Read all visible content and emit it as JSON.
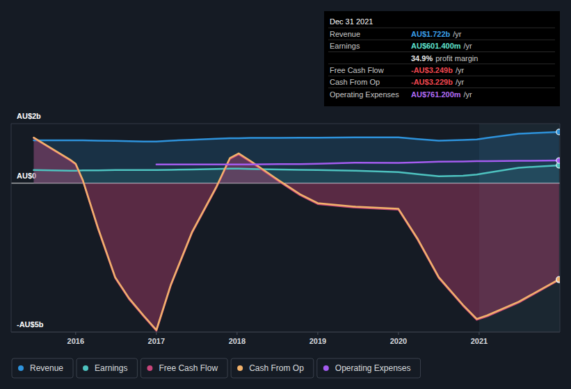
{
  "chart_data": {
    "type": "area",
    "x": [
      2015.48,
      2015.93,
      2016.0,
      2016.09,
      2016.28,
      2016.49,
      2016.66,
      2016.84,
      2017.0,
      2017.18,
      2017.44,
      2017.74,
      2017.91,
      2018.02,
      2018.17,
      2018.52,
      2018.78,
      2019.0,
      2019.47,
      2020.0,
      2020.24,
      2020.5,
      2020.8,
      2020.97,
      2021.1,
      2021.49,
      2021.99
    ],
    "xlim": [
      2015.2,
      2022.0
    ],
    "xticks": [
      2016,
      2017,
      2018,
      2019,
      2020,
      2021
    ],
    "ylim": [
      -5,
      2
    ],
    "yticks": [
      {
        "value": 2,
        "label": "AU$2b"
      },
      {
        "value": 0,
        "label": "AU$0"
      },
      {
        "value": -5,
        "label": "-AU$5b"
      }
    ],
    "grid": true,
    "legend": "bottom",
    "series": [
      {
        "name": "Revenue",
        "type": "area",
        "color": "#2e93dc",
        "values": [
          1.44,
          1.44,
          1.44,
          1.44,
          1.43,
          1.42,
          1.41,
          1.4,
          1.4,
          1.43,
          1.46,
          1.49,
          1.51,
          1.51,
          1.52,
          1.52,
          1.53,
          1.53,
          1.54,
          1.54,
          1.48,
          1.43,
          1.45,
          1.47,
          1.52,
          1.66,
          1.722
        ]
      },
      {
        "name": "Earnings",
        "type": "area",
        "color": "#4ec3c0",
        "values": [
          0.44,
          0.42,
          0.42,
          0.43,
          0.43,
          0.44,
          0.44,
          0.44,
          0.44,
          0.45,
          0.46,
          0.48,
          0.49,
          0.49,
          0.48,
          0.46,
          0.45,
          0.44,
          0.42,
          0.37,
          0.3,
          0.23,
          0.25,
          0.29,
          0.35,
          0.52,
          0.601
        ]
      },
      {
        "name": "Free Cash Flow",
        "type": "area",
        "color": "#c8457a",
        "values": [
          1.52,
          0.77,
          0.63,
          0.07,
          -1.56,
          -3.19,
          -3.89,
          -4.47,
          -4.96,
          -3.43,
          -1.68,
          -0.17,
          0.81,
          0.97,
          0.71,
          0.06,
          -0.4,
          -0.7,
          -0.82,
          -0.89,
          -1.91,
          -3.19,
          -4.12,
          -4.59,
          -4.47,
          -4.01,
          -3.249
        ]
      },
      {
        "name": "Cash From Op",
        "type": "line",
        "color": "#f2b26b",
        "values": [
          1.53,
          0.79,
          0.65,
          0.09,
          -1.53,
          -3.16,
          -3.86,
          -4.44,
          -4.93,
          -3.4,
          -1.65,
          -0.14,
          0.84,
          1.0,
          0.74,
          0.09,
          -0.37,
          -0.67,
          -0.79,
          -0.86,
          -1.88,
          -3.16,
          -4.09,
          -4.56,
          -4.44,
          -3.98,
          -3.229
        ]
      },
      {
        "name": "Operating Expenses",
        "type": "line",
        "color": "#a45cf0",
        "values": [
          null,
          null,
          null,
          null,
          null,
          null,
          null,
          null,
          0.63,
          0.63,
          0.63,
          0.63,
          0.63,
          0.63,
          0.63,
          0.64,
          0.64,
          0.65,
          0.69,
          0.68,
          0.7,
          0.72,
          0.73,
          0.74,
          0.74,
          0.75,
          0.761
        ]
      }
    ],
    "tooltip": {
      "title": "Dec 31 2021",
      "rows": [
        {
          "label": "Revenue",
          "value": "AU$1.722b",
          "unit": "/yr",
          "color": "#3a9fe8"
        },
        {
          "label": "Earnings",
          "value": "AU$601.400m",
          "unit": "/yr",
          "color": "#5fe3cf"
        },
        {
          "value": "34.9%",
          "unit": "profit margin",
          "color": "#e8e8e8"
        },
        {
          "label": "Free Cash Flow",
          "value": "-AU$3.249b",
          "unit": "/yr",
          "color": "#f0474f"
        },
        {
          "label": "Cash From Op",
          "value": "-AU$3.229b",
          "unit": "/yr",
          "color": "#f0474f"
        },
        {
          "label": "Operating Expenses",
          "value": "AU$761.200m",
          "unit": "/yr",
          "color": "#b06cf5"
        }
      ]
    }
  }
}
